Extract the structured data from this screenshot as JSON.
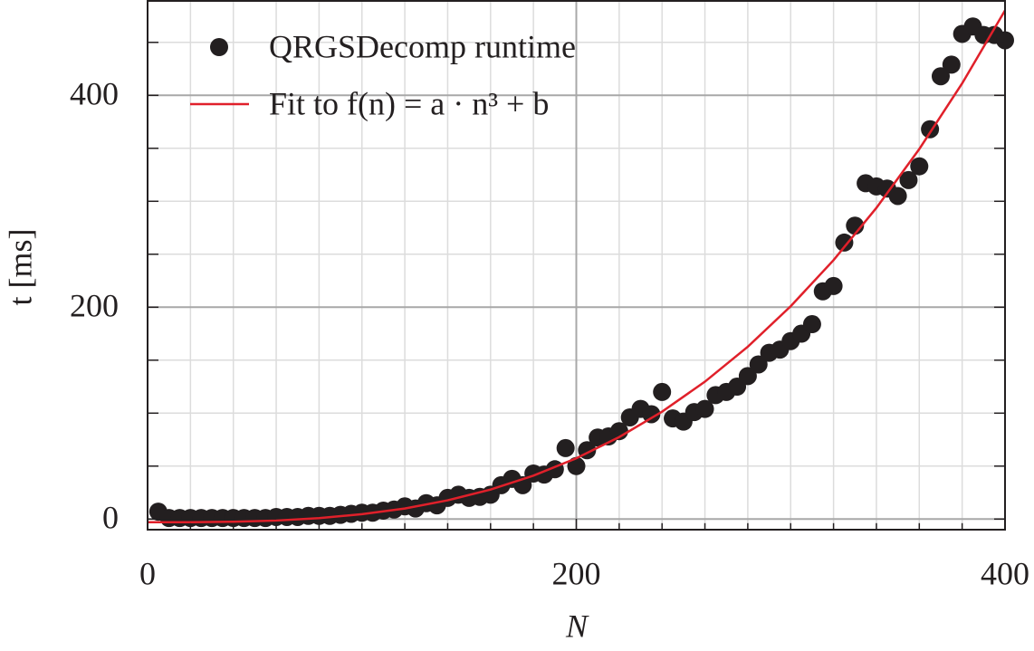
{
  "chart_data": {
    "type": "scatter",
    "xlabel": "N",
    "ylabel": "t [ms]",
    "xlim": [
      0,
      400
    ],
    "ylim": [
      -10,
      490
    ],
    "xticks": [
      0,
      200,
      400
    ],
    "yticks": [
      0,
      200,
      400
    ],
    "minor_xticks": [
      20,
      40,
      60,
      80,
      100,
      120,
      140,
      160,
      180,
      220,
      240,
      260,
      280,
      300,
      320,
      340,
      360,
      380
    ],
    "minor_yticks": [
      50,
      100,
      150,
      250,
      300,
      350,
      450
    ],
    "grid": true,
    "legend": "upper left",
    "series": [
      {
        "name": "QRGSDecomp runtime",
        "type": "scatter",
        "color": "#231f20",
        "x": [
          5,
          10,
          15,
          20,
          25,
          30,
          35,
          40,
          45,
          50,
          55,
          60,
          65,
          70,
          75,
          80,
          85,
          90,
          95,
          100,
          105,
          110,
          115,
          120,
          125,
          130,
          135,
          140,
          145,
          150,
          155,
          160,
          165,
          170,
          175,
          180,
          185,
          190,
          195,
          200,
          205,
          210,
          215,
          220,
          225,
          230,
          235,
          240,
          245,
          250,
          255,
          260,
          265,
          270,
          275,
          280,
          285,
          290,
          295,
          300,
          305,
          310,
          315,
          320,
          325,
          330,
          335,
          340,
          345,
          350,
          355,
          360,
          365,
          370,
          375,
          380,
          385,
          390,
          395,
          400
        ],
        "values": [
          7,
          1,
          1,
          1,
          1,
          1,
          1,
          1,
          1,
          1,
          1,
          2,
          2,
          2,
          3,
          3,
          3,
          4,
          5,
          6,
          6,
          8,
          9,
          12,
          10,
          15,
          13,
          20,
          23,
          20,
          21,
          23,
          32,
          38,
          32,
          43,
          42,
          47,
          67,
          50,
          65,
          77,
          78,
          83,
          96,
          104,
          99,
          120,
          95,
          92,
          101,
          104,
          117,
          120,
          125,
          135,
          146,
          157,
          160,
          168,
          175,
          184,
          215,
          220,
          261,
          277,
          317,
          314,
          312,
          305,
          320,
          333,
          368,
          418,
          429,
          458,
          465,
          457,
          457,
          452
        ]
      },
      {
        "name": "Fit to f(n) = a · n³ + b",
        "type": "line",
        "color": "#e0202a",
        "x": [
          0,
          20,
          40,
          60,
          80,
          100,
          120,
          140,
          160,
          180,
          200,
          220,
          240,
          260,
          280,
          300,
          320,
          340,
          360,
          380,
          400
        ],
        "values": [
          -3,
          -2.9,
          -2.5,
          -1.4,
          0.9,
          4.6,
          10,
          17.7,
          27.9,
          41,
          57.4,
          77.4,
          101.4,
          129.7,
          162.7,
          200.9,
          244.4,
          293.8,
          349.3,
          411.3,
          480.2
        ]
      }
    ]
  }
}
